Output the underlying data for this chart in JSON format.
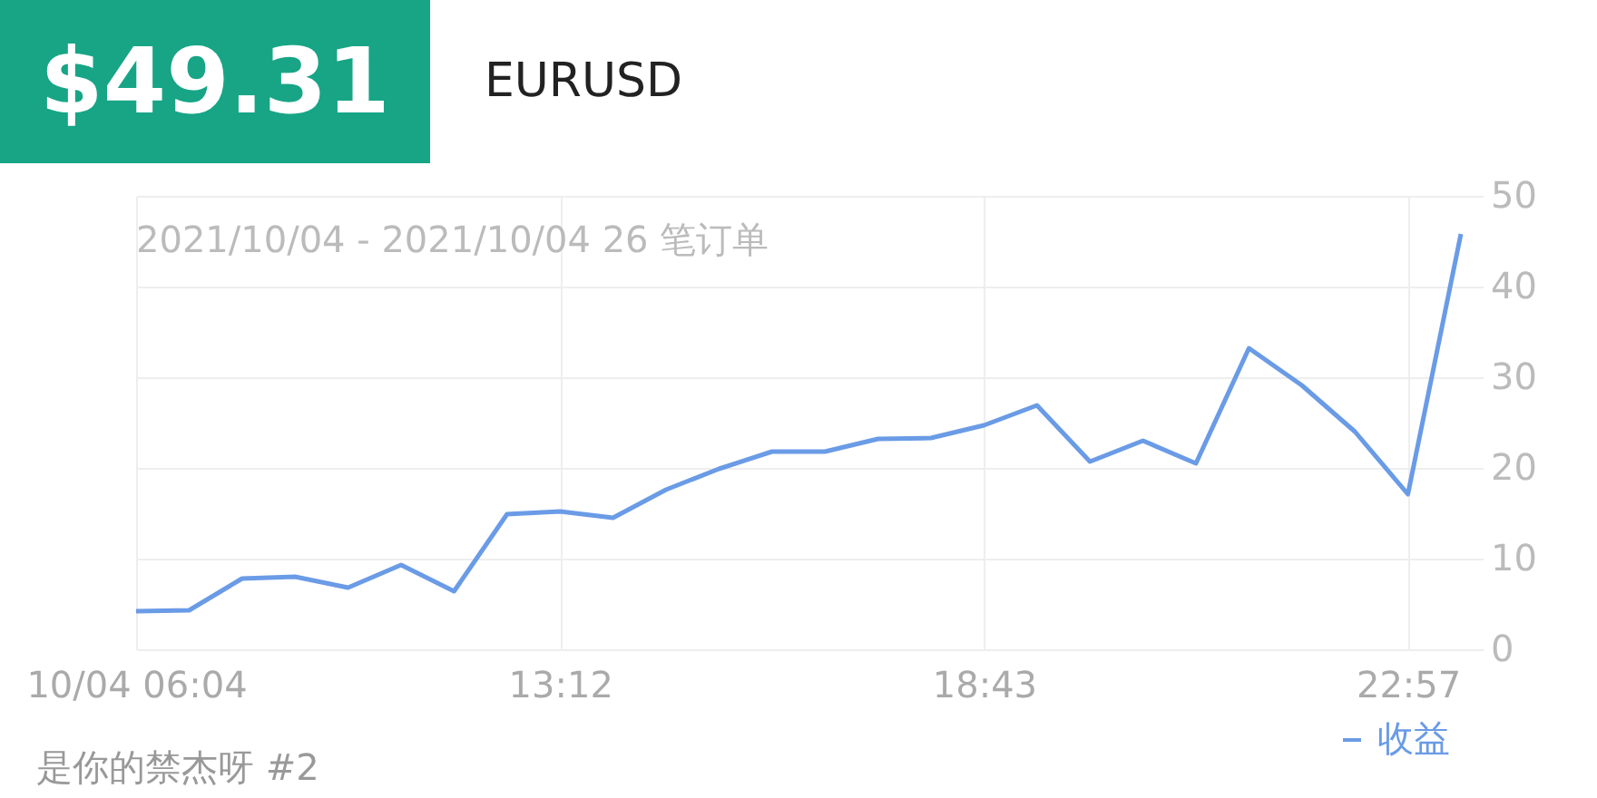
{
  "chart_data": {
    "type": "line",
    "title": "$49.31",
    "subtitle": "EURUSD",
    "annotations": [
      "2021/10/04 - 2021/10/04 26 笔订单",
      "是你的禁杰呀 #2"
    ],
    "categories": [
      "10/04 06:04",
      null,
      null,
      null,
      null,
      null,
      null,
      null,
      "13:12",
      null,
      null,
      null,
      null,
      null,
      null,
      null,
      "18:43",
      null,
      null,
      null,
      null,
      null,
      null,
      null,
      "22:57",
      null
    ],
    "series": [
      {
        "name": "收益",
        "color": "#6a9be6",
        "values": [
          4.2,
          4.3,
          7.8,
          8.0,
          6.8,
          9.3,
          6.4,
          14.9,
          15.2,
          14.5,
          17.6,
          19.9,
          21.8,
          21.8,
          23.2,
          23.3,
          24.7,
          26.9,
          20.7,
          23.0,
          20.5,
          33.2,
          29.1,
          24.0,
          17.1,
          45.8
        ]
      }
    ],
    "ylim": [
      0,
      50
    ],
    "yticks": [
      0,
      10,
      20,
      30,
      40,
      50
    ],
    "grid": true,
    "legend": "bottom right",
    "marker": "none",
    "line_style": "solid"
  }
}
